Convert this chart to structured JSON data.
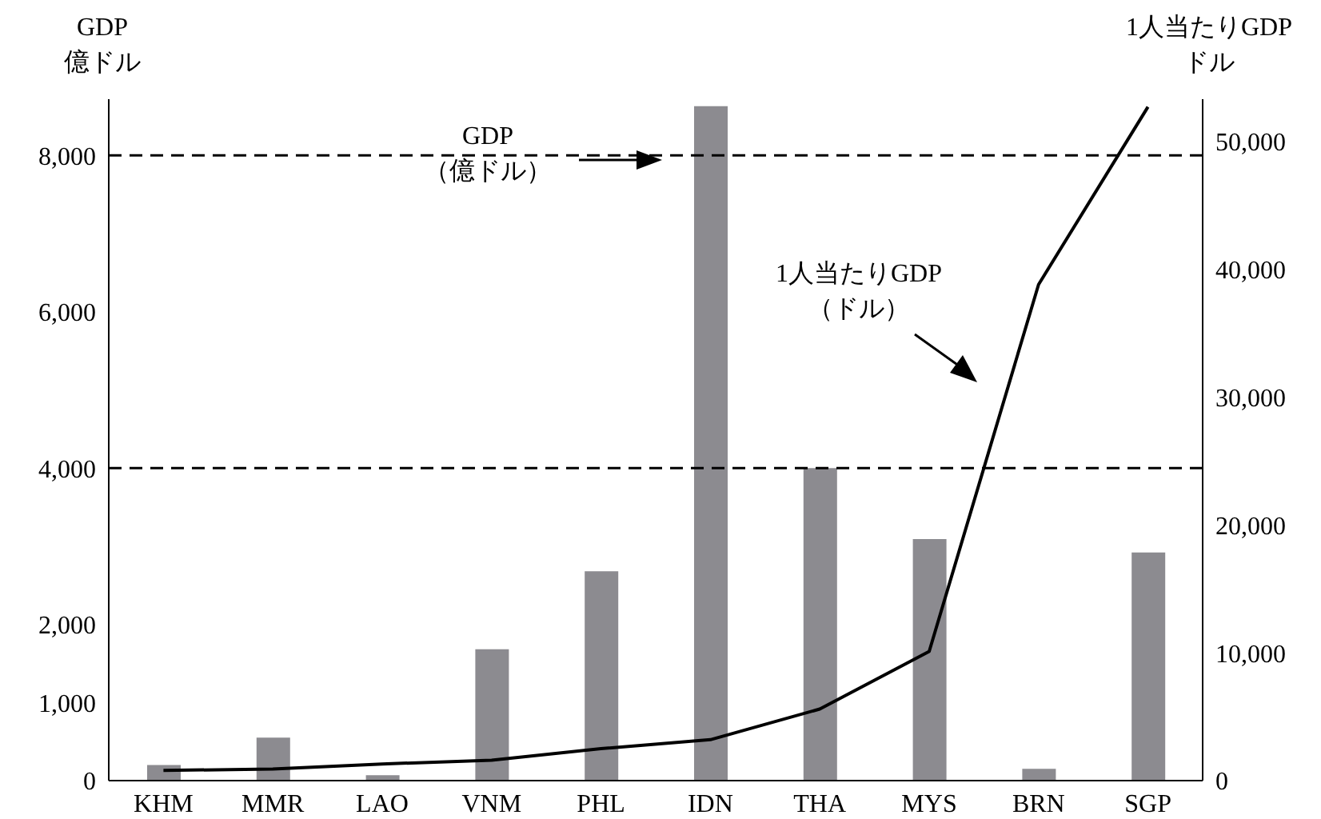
{
  "chart_data": {
    "type": "bar",
    "ylabel": "GDP\n億ドル",
    "y2label": "1人当たりGDP\nドル",
    "categories": [
      "KHM",
      "MMR",
      "LAO",
      "VNM",
      "PHL",
      "IDN",
      "THA",
      "MYS",
      "BRN",
      "SGP"
    ],
    "series": [
      {
        "color": "#8c8b90",
        "values": [
          200,
          550,
          70,
          1680,
          2680,
          8630,
          4000,
          3090,
          150,
          2920
        ]
      },
      {
        "type": "line",
        "axis": "y2",
        "color": "#000000",
        "values": [
          800,
          900,
          1300,
          1600,
          2500,
          3200,
          5600,
          10100,
          38800,
          52700
        ]
      }
    ],
    "ylim": [
      0,
      8720
    ],
    "yticks": [
      0,
      {
        "value": 1000,
        "label": "1,000"
      },
      {
        "value": 2000,
        "label": "2,000"
      },
      {
        "value": 4000,
        "label": "4,000"
      },
      {
        "value": 6000,
        "label": "6,000"
      },
      {
        "value": 8000,
        "label": "8,000"
      }
    ],
    "y2lim": [
      0,
      53300
    ],
    "y2ticks": [
      0,
      {
        "value": 10000,
        "label": "10,000"
      },
      {
        "value": 20000,
        "label": "20,000"
      },
      {
        "value": 30000,
        "label": "30,000"
      },
      {
        "value": 40000,
        "label": "40,000"
      },
      {
        "value": 50000,
        "label": "50,000"
      }
    ],
    "ref_lines": [
      {
        "axis": "y",
        "value": 8000,
        "line_style": "dashed",
        "color": "#000000"
      },
      {
        "axis": "y",
        "value": 4000,
        "line_style": "dashed",
        "color": "#000000"
      }
    ],
    "annotations": [
      "GDP\n（億ドル）",
      "1人当たりGDP\n（ドル）"
    ]
  }
}
